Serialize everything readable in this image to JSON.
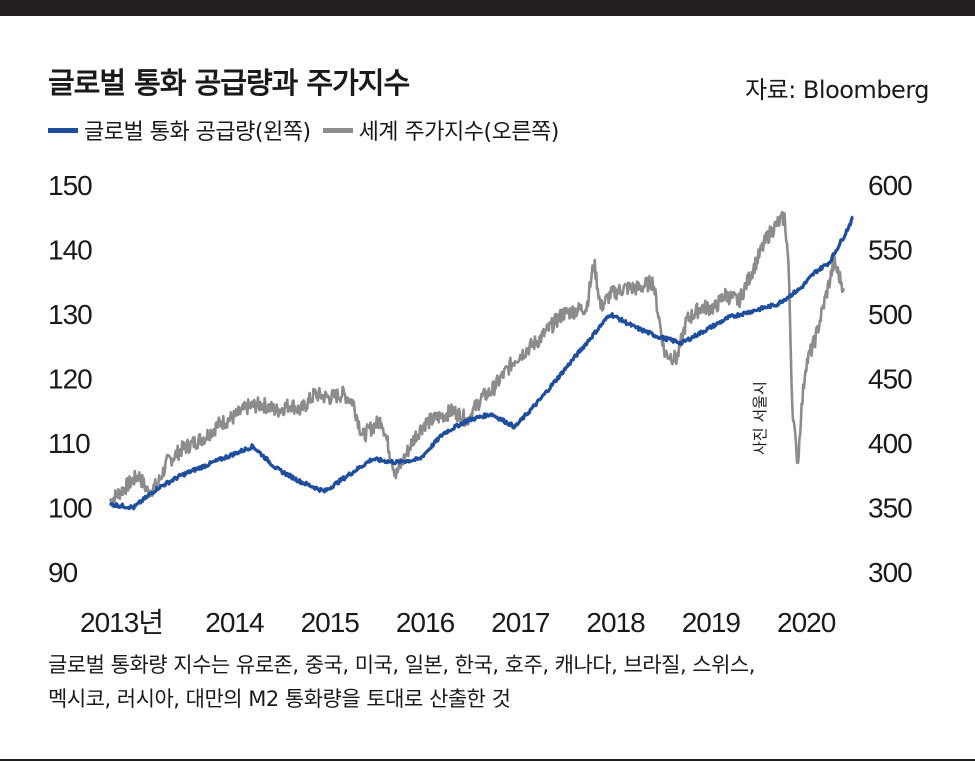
{
  "header": {
    "title": "글로벌 통화 공급량과 주가지수",
    "source": "자료: Bloomberg"
  },
  "legend": {
    "items": [
      {
        "label": "글로벌 통화 공급량(왼쪽)",
        "color": "#1f4e9c"
      },
      {
        "label": "세계 주가지수(오른쪽)",
        "color": "#8c8c8c"
      }
    ]
  },
  "photo_credit": "사진 서울시",
  "footnote": {
    "line1": "글로벌 통화량 지수는 유로존, 중국, 미국, 일본, 한국, 호주, 캐나다, 브라질, 스위스,",
    "line2": "멕시코, 러시아, 대만의 M2 통화량을 토대로 산출한 것"
  },
  "chart_data": {
    "type": "line",
    "x_labels": [
      "2013년",
      "2014",
      "2015",
      "2016",
      "2017",
      "2018",
      "2019",
      "2020"
    ],
    "xlim": [
      2013.0,
      2020.85
    ],
    "y_left": {
      "ticks": [
        "150",
        "140",
        "130",
        "120",
        "110",
        "100",
        "90"
      ],
      "ylim": [
        90,
        150
      ]
    },
    "y_right": {
      "ticks": [
        "600",
        "550",
        "500",
        "450",
        "400",
        "350",
        "300"
      ],
      "ylim": [
        300,
        600
      ]
    },
    "series": [
      {
        "name": "글로벌 통화 공급량(왼쪽)",
        "axis": "left",
        "color": "#1f4e9c",
        "x": [
          2013.0,
          2013.25,
          2013.5,
          2013.75,
          2014.0,
          2014.25,
          2014.5,
          2014.75,
          2015.0,
          2015.25,
          2015.5,
          2015.75,
          2016.0,
          2016.25,
          2016.5,
          2016.75,
          2017.0,
          2017.25,
          2017.5,
          2017.75,
          2018.0,
          2018.25,
          2018.5,
          2018.75,
          2019.0,
          2019.25,
          2019.5,
          2019.75,
          2020.0,
          2020.15,
          2020.25,
          2020.4,
          2020.55,
          2020.7,
          2020.8
        ],
        "y": [
          100.5,
          100.0,
          103.0,
          105.0,
          106.5,
          108.0,
          109.5,
          106.0,
          104.0,
          102.5,
          105.0,
          107.5,
          107.0,
          107.5,
          111.5,
          113.5,
          114.5,
          112.5,
          116.5,
          121.0,
          125.5,
          130.0,
          128.0,
          126.5,
          125.5,
          127.5,
          129.5,
          130.5,
          131.5,
          133.0,
          134.0,
          136.5,
          138.0,
          142.0,
          145.0
        ]
      },
      {
        "name": "세계 주가지수(오른쪽)",
        "axis": "right",
        "color": "#8c8c8c",
        "x": [
          2013.0,
          2013.15,
          2013.3,
          2013.4,
          2013.5,
          2013.6,
          2013.75,
          2014.0,
          2014.15,
          2014.3,
          2014.45,
          2014.6,
          2014.75,
          2014.9,
          2015.0,
          2015.15,
          2015.3,
          2015.45,
          2015.55,
          2015.65,
          2015.75,
          2015.85,
          2016.0,
          2016.1,
          2016.2,
          2016.3,
          2016.45,
          2016.6,
          2016.75,
          2016.9,
          2017.0,
          2017.25,
          2017.5,
          2017.75,
          2018.0,
          2018.08,
          2018.15,
          2018.25,
          2018.4,
          2018.55,
          2018.7,
          2018.82,
          2018.95,
          2019.05,
          2019.2,
          2019.35,
          2019.45,
          2019.6,
          2019.75,
          2019.9,
          2020.0,
          2020.08,
          2020.12,
          2020.16,
          2020.2,
          2020.22,
          2020.25,
          2020.3,
          2020.4,
          2020.5,
          2020.6,
          2020.7
        ],
        "y": [
          355,
          365,
          375,
          362,
          368,
          385,
          395,
          405,
          415,
          420,
          428,
          430,
          425,
          430,
          425,
          438,
          435,
          438,
          432,
          405,
          412,
          418,
          375,
          390,
          405,
          415,
          420,
          425,
          418,
          435,
          440,
          465,
          480,
          500,
          505,
          540,
          505,
          515,
          520,
          520,
          525,
          470,
          465,
          495,
          505,
          505,
          515,
          510,
          535,
          560,
          570,
          575,
          540,
          430,
          395,
          385,
          420,
          460,
          480,
          510,
          540,
          520
        ]
      }
    ]
  }
}
